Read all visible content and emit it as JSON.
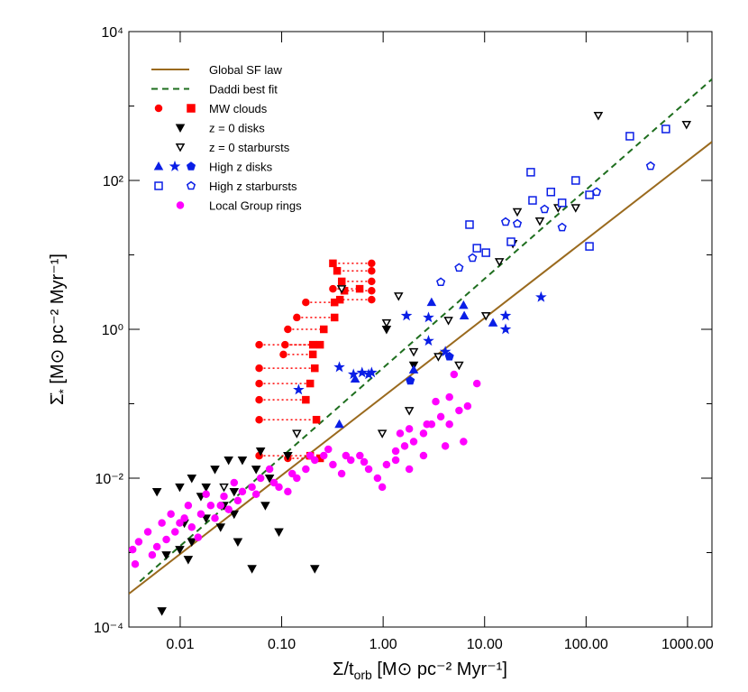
{
  "chart_data": {
    "type": "scatter",
    "xscale": "log",
    "yscale": "log",
    "xlabel": {
      "main": "Σ/t",
      "sub": "orb",
      "units": " [M⊙ pc⁻² Myr⁻¹]"
    },
    "ylabel": {
      "main": "Σ̇",
      "sub": "*",
      "units": " [M⊙ pc⁻² Myr⁻¹]"
    },
    "xlim": [
      0.00312,
      1740
    ],
    "ylim": [
      0.0001,
      10000
    ],
    "xticks": [
      0.01,
      {
        "value": 0.1,
        "label": "0.10"
      },
      {
        "value": 1,
        "label": "1.00"
      },
      {
        "value": 10,
        "label": "10.00"
      },
      {
        "value": 100,
        "label": "100.00"
      },
      {
        "value": 1000,
        "label": "1000.00"
      }
    ],
    "yticks": [
      {
        "value": 0.0001,
        "label": "10⁻⁴"
      },
      {
        "value": 0.01,
        "label": "10⁻²"
      },
      {
        "value": 1,
        "label": "10⁰"
      },
      {
        "value": 100,
        "label": "10²"
      },
      {
        "value": 10000,
        "label": "10⁴"
      }
    ],
    "yminor": [
      0.001,
      0.1,
      10,
      1000
    ],
    "legend": "upper left",
    "lines": [
      {
        "name": "Global SF law",
        "color": "#9a6a1e",
        "dash": "solid",
        "x": [
          0.00312,
          1740
        ],
        "y": [
          0.00028,
          330
        ]
      },
      {
        "name": "Daddi best fit",
        "color": "#1e6e1e",
        "dash": "dashed",
        "x": [
          0.004,
          1740
        ],
        "y": [
          0.00041,
          2290
        ]
      }
    ],
    "series": [
      {
        "name": "MW clouds",
        "color": "#ff0000",
        "filled": true,
        "legend_markers": [
          "circle",
          "square"
        ],
        "connector": "dotted",
        "x": [
          0.06,
          0.06,
          0.06,
          0.06,
          0.06,
          0.06,
          0.108,
          0.115,
          0.141,
          0.173,
          0.32,
          0.77,
          0.77,
          0.77,
          0.77,
          0.77,
          0.115,
          0.104
        ],
        "x2": [
          0.203,
          0.212,
          0.191,
          0.173,
          0.22,
          0.191,
          0.239,
          0.26,
          0.332,
          0.332,
          0.587,
          0.32,
          0.352,
          0.391,
          0.415,
          0.375,
          0.239,
          0.203
        ],
        "y": [
          0.62,
          0.3,
          0.187,
          0.113,
          0.061,
          0.02,
          0.62,
          1.0,
          1.44,
          2.3,
          3.5,
          7.7,
          6.1,
          4.4,
          3.3,
          2.5,
          0.0185,
          0.46
        ]
      },
      {
        "name": "z = 0 disks",
        "color": "#000000",
        "filled": true,
        "legend_markers": [
          "triangle"
        ],
        "marker": "triangle",
        "x": [
          0.0066,
          0.0059,
          0.0099,
          0.013,
          0.016,
          0.022,
          0.027,
          0.034,
          0.041,
          0.056,
          0.069,
          0.076,
          0.115,
          0.011,
          0.013,
          0.018,
          0.025,
          0.034,
          0.0099,
          0.012,
          0.0073,
          0.051,
          0.037,
          0.212,
          0.018,
          0.03,
          0.062,
          0.094,
          2.0,
          1.08
        ],
        "y": [
          0.000165,
          0.0066,
          0.0076,
          0.01,
          0.0057,
          0.0132,
          0.0043,
          0.0066,
          0.0175,
          0.0132,
          0.0043,
          0.01,
          0.0201,
          0.0025,
          0.0014,
          0.0029,
          0.0022,
          0.0033,
          0.0011,
          0.00081,
          0.00093,
          0.00061,
          0.0014,
          0.00061,
          0.0076,
          0.0175,
          0.0231,
          0.0019,
          0.33,
          1.0
        ]
      },
      {
        "name": "z = 0 starbursts",
        "color": "#000000",
        "filled": false,
        "legend_markers": [
          "triangle"
        ],
        "marker": "triangle",
        "x": [
          0.39,
          1.42,
          1.08,
          2.0,
          3.5,
          4.4,
          5.6,
          10.3,
          14.0,
          19.0,
          21,
          35,
          53,
          79,
          132,
          977,
          1.81,
          0.98,
          0.141,
          0.027
        ],
        "y": [
          3.5,
          2.8,
          1.22,
          0.5,
          0.43,
          1.32,
          0.33,
          1.52,
          8.1,
          14.2,
          38,
          28.5,
          43,
          43,
          746,
          565,
          0.081,
          0.04,
          0.04,
          0.0076
        ]
      },
      {
        "name": "High z disks",
        "color": "#0a1ee6",
        "filled": true,
        "legend_markers": [
          "triangle-up",
          "star",
          "pentagon"
        ],
        "markers": [
          "star",
          "star",
          "star",
          "star",
          "star",
          "star",
          "star",
          "star",
          "star",
          "star",
          "star",
          "star",
          "star",
          "triangle-up",
          "triangle-up",
          "triangle-up",
          "triangle-up",
          "triangle-up",
          "triangle-up",
          "triangle-up",
          "pentagon",
          "pentagon"
        ],
        "x": [
          0.147,
          0.51,
          0.62,
          0.72,
          0.77,
          2.8,
          1.7,
          2.8,
          4.1,
          16.1,
          16.1,
          36,
          0.37,
          0.37,
          0.53,
          2.0,
          6.3,
          12.1,
          3.0,
          6.2,
          1.85,
          4.5
        ],
        "y": [
          0.154,
          0.248,
          0.262,
          0.248,
          0.262,
          1.44,
          1.52,
          0.7,
          0.5,
          1.52,
          1.0,
          2.7,
          0.31,
          0.053,
          0.215,
          0.285,
          1.52,
          1.22,
          2.3,
          2.1,
          0.204,
          0.43
        ]
      },
      {
        "name": "High z starbursts",
        "color": "#0a1ee6",
        "filled": false,
        "legend_markers": [
          "square",
          "pentagon"
        ],
        "markers": [
          "square",
          "square",
          "square",
          "square",
          "square",
          "square",
          "square",
          "square",
          "square",
          "square",
          "square",
          "square",
          "square",
          "pentagon",
          "pentagon",
          "pentagon",
          "pentagon",
          "pentagon",
          "pentagon",
          "pentagon",
          "pentagon",
          "pentagon"
        ],
        "x": [
          7.1,
          28.5,
          29.7,
          45,
          58,
          79,
          108,
          108,
          18.2,
          10.3,
          8.4,
          270,
          611,
          3.7,
          5.6,
          7.6,
          16.1,
          21,
          39,
          58,
          127,
          432
        ],
        "y": [
          25.5,
          129,
          54,
          70,
          50,
          100,
          64,
          13.0,
          15.0,
          10.7,
          12.3,
          393,
          491,
          4.3,
          6.7,
          9.1,
          27.7,
          26.2,
          41,
          23.4,
          70,
          156
        ]
      },
      {
        "name": "Local Group rings",
        "color": "#ff00ff",
        "filled": true,
        "legend_markers": [
          "circle"
        ],
        "marker": "circle",
        "x": [
          0.0034,
          0.0039,
          0.0048,
          0.0059,
          0.0066,
          0.0081,
          0.0089,
          0.011,
          0.012,
          0.013,
          0.015,
          0.016,
          0.02,
          0.022,
          0.027,
          0.03,
          0.034,
          0.041,
          0.051,
          0.062,
          0.076,
          0.094,
          0.115,
          0.141,
          0.173,
          0.212,
          0.26,
          0.32,
          0.39,
          0.48,
          0.59,
          0.72,
          0.88,
          1.08,
          1.33,
          1.63,
          2.0,
          2.5,
          3.0,
          3.7,
          4.5,
          5.6,
          6.8,
          8.4,
          0.0036,
          0.0053,
          0.0073,
          0.0099,
          0.018,
          0.025,
          0.037,
          0.056,
          0.084,
          0.127,
          0.191,
          0.288,
          0.43,
          0.65,
          0.98,
          1.47,
          1.81,
          2.7,
          4.1,
          6.2,
          5.0,
          3.3,
          4.5,
          2.5,
          1.81,
          1.33
        ],
        "y": [
          0.0011,
          0.0014,
          0.0019,
          0.0012,
          0.0025,
          0.0033,
          0.0019,
          0.0029,
          0.0043,
          0.0022,
          0.0016,
          0.0033,
          0.0043,
          0.0029,
          0.0057,
          0.0038,
          0.0087,
          0.0066,
          0.0076,
          0.01,
          0.0132,
          0.0076,
          0.0066,
          0.01,
          0.0132,
          0.0175,
          0.0201,
          0.0152,
          0.0115,
          0.0175,
          0.0201,
          0.0132,
          0.01,
          0.0152,
          0.0231,
          0.027,
          0.031,
          0.04,
          0.053,
          0.067,
          0.123,
          0.081,
          0.093,
          0.187,
          0.0007,
          0.00093,
          0.0015,
          0.0025,
          0.0061,
          0.0043,
          0.005,
          0.0061,
          0.0087,
          0.0115,
          0.0201,
          0.0244,
          0.0201,
          0.0165,
          0.0076,
          0.04,
          0.046,
          0.053,
          0.027,
          0.031,
          0.248,
          0.107,
          0.053,
          0.0201,
          0.0132,
          0.0175
        ]
      }
    ]
  }
}
